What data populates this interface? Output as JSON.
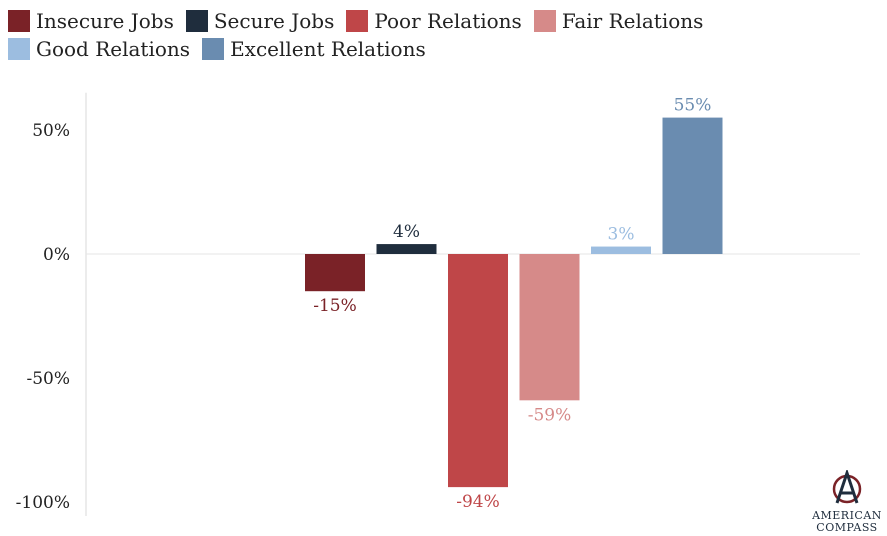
{
  "chart_data": {
    "type": "bar",
    "ylim": [
      -105,
      65
    ],
    "yticks": [
      {
        "value": 50,
        "label": "50%"
      },
      {
        "value": 0,
        "label": "0%"
      },
      {
        "value": -50,
        "label": "-50%"
      },
      {
        "value": -100,
        "label": "-100%"
      }
    ],
    "grid": false,
    "legend_position": "top",
    "series": [
      {
        "name": "Insecure Jobs",
        "value": -15,
        "label": "-15%",
        "color": "#7a2227"
      },
      {
        "name": "Secure Jobs",
        "value": 4,
        "label": "4%",
        "color": "#1f2d3d"
      },
      {
        "name": "Poor Relations",
        "value": -94,
        "label": "-94%",
        "color": "#bf4648"
      },
      {
        "name": "Fair Relations",
        "value": -59,
        "label": "-59%",
        "color": "#d68a89"
      },
      {
        "name": "Good Relations",
        "value": 3,
        "label": "3%",
        "color": "#9cbde0"
      },
      {
        "name": "Excellent Relations",
        "value": 55,
        "label": "55%",
        "color": "#6a8cb0"
      }
    ]
  },
  "logo": {
    "line1": "AMERICAN",
    "line2": "COMPASS"
  }
}
